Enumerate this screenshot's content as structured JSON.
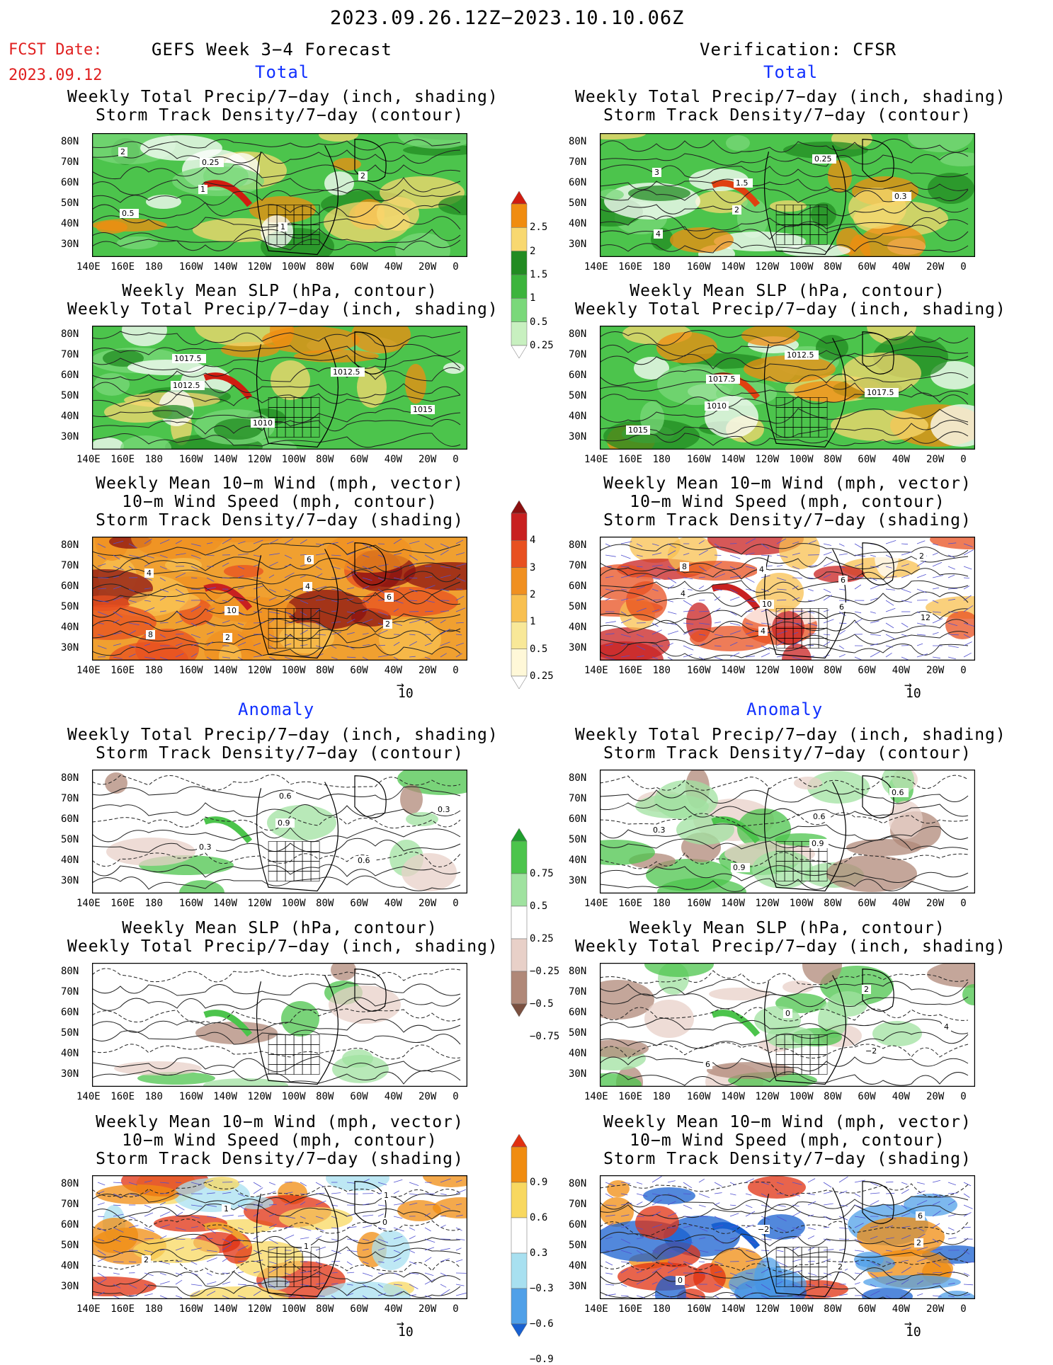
{
  "title": "2023.09.26.12Z−2023.10.10.06Z",
  "fcst_label": "FCST Date:",
  "fcst_date": "2023.09.12",
  "left_header": "GEFS Week 3−4 Forecast",
  "right_header": "Verification: CFSR",
  "section_total": "Total",
  "section_anomaly": "Anomaly",
  "panel_titles": {
    "precip_track": [
      "Weekly Total Precip/7−day (inch, shading)",
      "Storm Track Density/7−day (contour)"
    ],
    "slp_precip": [
      "Weekly Mean SLP (hPa, contour)",
      "Weekly Total Precip/7−day (inch, shading)"
    ],
    "wind_track": [
      "Weekly Mean 10−m Wind (mph, vector)",
      "10−m Wind Speed (mph, contour)",
      "Storm Track Density/7−day (shading)"
    ]
  },
  "lat_labels": [
    "80N",
    "70N",
    "60N",
    "50N",
    "40N",
    "30N"
  ],
  "lon_labels": [
    "140E",
    "160E",
    "180",
    "160W",
    "140W",
    "120W",
    "100W",
    "80W",
    "60W",
    "40W",
    "20W",
    "0"
  ],
  "vector_ref": "10",
  "colorbars": {
    "precip_total": {
      "labels": [
        "2.5",
        "2",
        "1.5",
        "1",
        "0.5",
        "0.25"
      ],
      "colors": [
        "#d01c10",
        "#f08c10",
        "#f8d870",
        "#228b22",
        "#3cb43c",
        "#7ad87a",
        "#c8f0c0",
        "#ffffff"
      ]
    },
    "track_total": {
      "labels": [
        "4",
        "3",
        "2",
        "1",
        "0.5",
        "0.25"
      ],
      "colors": [
        "#8b1010",
        "#c82020",
        "#e85020",
        "#f09020",
        "#f8c050",
        "#f8e898",
        "#fff8d8",
        "#ffffff"
      ]
    },
    "precip_anom": {
      "labels": [
        "0.75",
        "0.5",
        "0.25",
        "−0.25",
        "−0.5",
        "−0.75"
      ],
      "colors": [
        "#1f9e2e",
        "#4cc44c",
        "#a0e2a0",
        "#ffffff",
        "#e8d0c8",
        "#b08878",
        "#7a5040"
      ]
    },
    "track_anom": {
      "labels": [
        "0.9",
        "0.6",
        "0.3",
        "−0.3",
        "−0.6",
        "−0.9"
      ],
      "colors": [
        "#e03010",
        "#f08c10",
        "#f8d860",
        "#ffffff",
        "#a8e0f0",
        "#50a0e8",
        "#1860d0"
      ]
    }
  },
  "panels": [
    {
      "id": "p1",
      "fill": "#4cc44c",
      "accent": "#d01c10",
      "labels": [
        "2",
        "1",
        "1",
        "2",
        "0.5",
        "0.25"
      ]
    },
    {
      "id": "p2",
      "fill": "#4cc44c",
      "accent": "#e04010",
      "labels": [
        "3",
        "2",
        "0.25",
        "0.3",
        "4",
        "1.5"
      ]
    },
    {
      "id": "p3",
      "fill": "#4cc44c",
      "accent": "#d01c10",
      "labels": [
        "1012.5",
        "1010",
        "1012.5",
        "1015",
        "1017.5"
      ]
    },
    {
      "id": "p4",
      "fill": "#4cc44c",
      "accent": "#e04010",
      "labels": [
        "1010",
        "1012.5",
        "1017.5",
        "1015",
        "1017.5"
      ]
    },
    {
      "id": "p5",
      "fill": "#f0a030",
      "accent": "#c82020",
      "labels": [
        "2",
        "4",
        "2",
        "4",
        "10",
        "6",
        "6",
        "8"
      ]
    },
    {
      "id": "p6",
      "fill": "#ffffff",
      "accent": "#c82020",
      "labels": [
        "4",
        "6",
        "2",
        "4",
        "4",
        "6",
        "12",
        "8",
        "10"
      ]
    },
    {
      "id": "p7",
      "fill": "#ffffff",
      "accent": "#4cc44c",
      "labels": [
        "0.9",
        "0.6",
        "0.3",
        "0.3",
        "0.6"
      ]
    },
    {
      "id": "p8",
      "fill": "#ffffff",
      "accent": "#4cc44c",
      "labels": [
        "0.9",
        "0.6",
        "0.3",
        "0.9",
        "0.6"
      ]
    },
    {
      "id": "p9",
      "fill": "#ffffff",
      "accent": "#4cc44c",
      "labels": []
    },
    {
      "id": "p10",
      "fill": "#ffffff",
      "accent": "#4cc44c",
      "labels": [
        "2",
        "4",
        "6",
        "0",
        "−2"
      ]
    },
    {
      "id": "p11",
      "fill": "#ffffff",
      "accent": "#f0a030",
      "labels": [
        "0",
        "2",
        "1",
        "1",
        "1"
      ]
    },
    {
      "id": "p12",
      "fill": "#ffffff",
      "accent": "#1860d0",
      "labels": [
        "2",
        "0",
        "−2",
        "2",
        "6"
      ]
    }
  ]
}
